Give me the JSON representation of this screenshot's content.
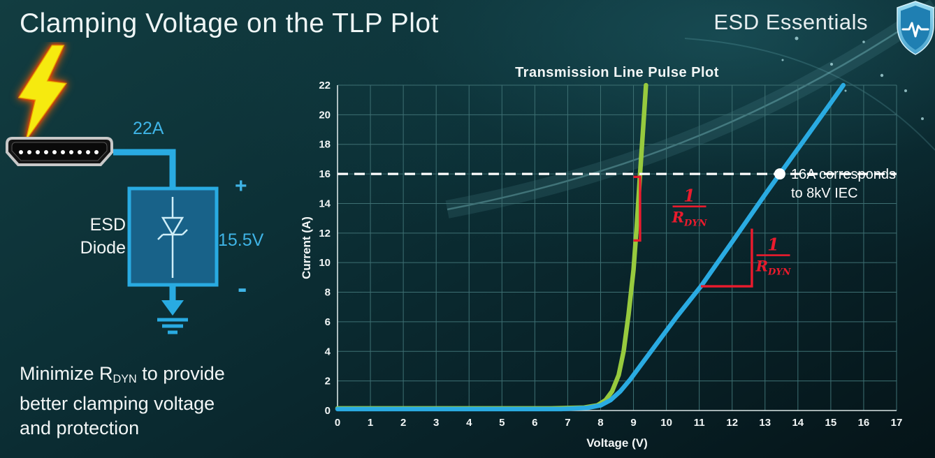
{
  "slide": {
    "title": "Clamping Voltage on the TLP Plot",
    "brand": "ESD Essentials"
  },
  "diagram": {
    "surge_current": "22A",
    "plus_sign": "+",
    "minus_sign": "-",
    "clamp_voltage": "15.5V",
    "component_line1": "ESD",
    "component_line2": "Diode"
  },
  "note": {
    "line1_pre": "Minimize R",
    "line1_sub": "DYN",
    "line1_post": " to provide",
    "line2": "better clamping voltage",
    "line3": "and protection"
  },
  "chart_data": {
    "type": "line",
    "title": "Transmission Line Pulse Plot",
    "xlabel": "Voltage (V)",
    "ylabel": "Current (A)",
    "xlim": [
      0,
      17
    ],
    "ylim": [
      0,
      22
    ],
    "xticks": [
      0,
      1,
      2,
      3,
      4,
      5,
      6,
      7,
      8,
      9,
      10,
      11,
      12,
      13,
      14,
      15,
      16,
      17
    ],
    "yticks": [
      0,
      2,
      4,
      6,
      8,
      10,
      12,
      14,
      16,
      18,
      20,
      22
    ],
    "grid": true,
    "legend": false,
    "series": [
      {
        "name": "low-rdyn-green",
        "color": "#97ca3e",
        "width": 6.5,
        "points": [
          [
            0,
            0.15
          ],
          [
            6.5,
            0.15
          ],
          [
            7.5,
            0.2
          ],
          [
            7.9,
            0.35
          ],
          [
            8.15,
            0.7
          ],
          [
            8.35,
            1.3
          ],
          [
            8.55,
            2.4
          ],
          [
            8.7,
            4
          ],
          [
            8.85,
            6.5
          ],
          [
            9.0,
            9.5
          ],
          [
            9.1,
            12.5
          ],
          [
            9.2,
            16
          ],
          [
            9.3,
            19.3
          ],
          [
            9.38,
            22
          ]
        ]
      },
      {
        "name": "higher-rdyn-blue",
        "color": "#2aabe2",
        "width": 6.5,
        "points": [
          [
            0,
            0.1
          ],
          [
            6.8,
            0.1
          ],
          [
            7.6,
            0.18
          ],
          [
            8.0,
            0.35
          ],
          [
            8.3,
            0.7
          ],
          [
            8.6,
            1.3
          ],
          [
            8.9,
            2.1
          ],
          [
            9.3,
            3.3
          ],
          [
            9.8,
            4.8
          ],
          [
            10.3,
            6.3
          ],
          [
            11.05,
            8.4
          ],
          [
            12,
            11.4
          ],
          [
            13,
            14.6
          ],
          [
            13.45,
            16
          ],
          [
            14,
            17.7
          ],
          [
            15,
            20.8
          ],
          [
            15.38,
            22
          ]
        ]
      }
    ],
    "reference_line": {
      "y": 16,
      "color": "#ffffff",
      "style": "dashed"
    },
    "marker": {
      "x": 13.45,
      "y": 16,
      "color": "#ffffff",
      "label_line1": "16A corresponds",
      "label_line2": "to 8kV IEC"
    },
    "slope_annotations": [
      {
        "color": "#ea1b2d",
        "points": [
          [
            9.0,
            15.8
          ],
          [
            9.2,
            15.8
          ],
          [
            9.2,
            11.5
          ],
          [
            9.0,
            11.5
          ]
        ],
        "fraction_x": 10.7,
        "fraction_y": 13.8,
        "numerator": "1",
        "denominator": "R",
        "denominator_sub": "DYN"
      },
      {
        "color": "#ea1b2d",
        "points": [
          [
            11.05,
            8.4
          ],
          [
            12.6,
            8.4
          ],
          [
            12.6,
            12.3
          ]
        ],
        "fraction_x": 13.25,
        "fraction_y": 10.5,
        "numerator": "1",
        "denominator": "R",
        "denominator_sub": "DYN"
      }
    ]
  }
}
